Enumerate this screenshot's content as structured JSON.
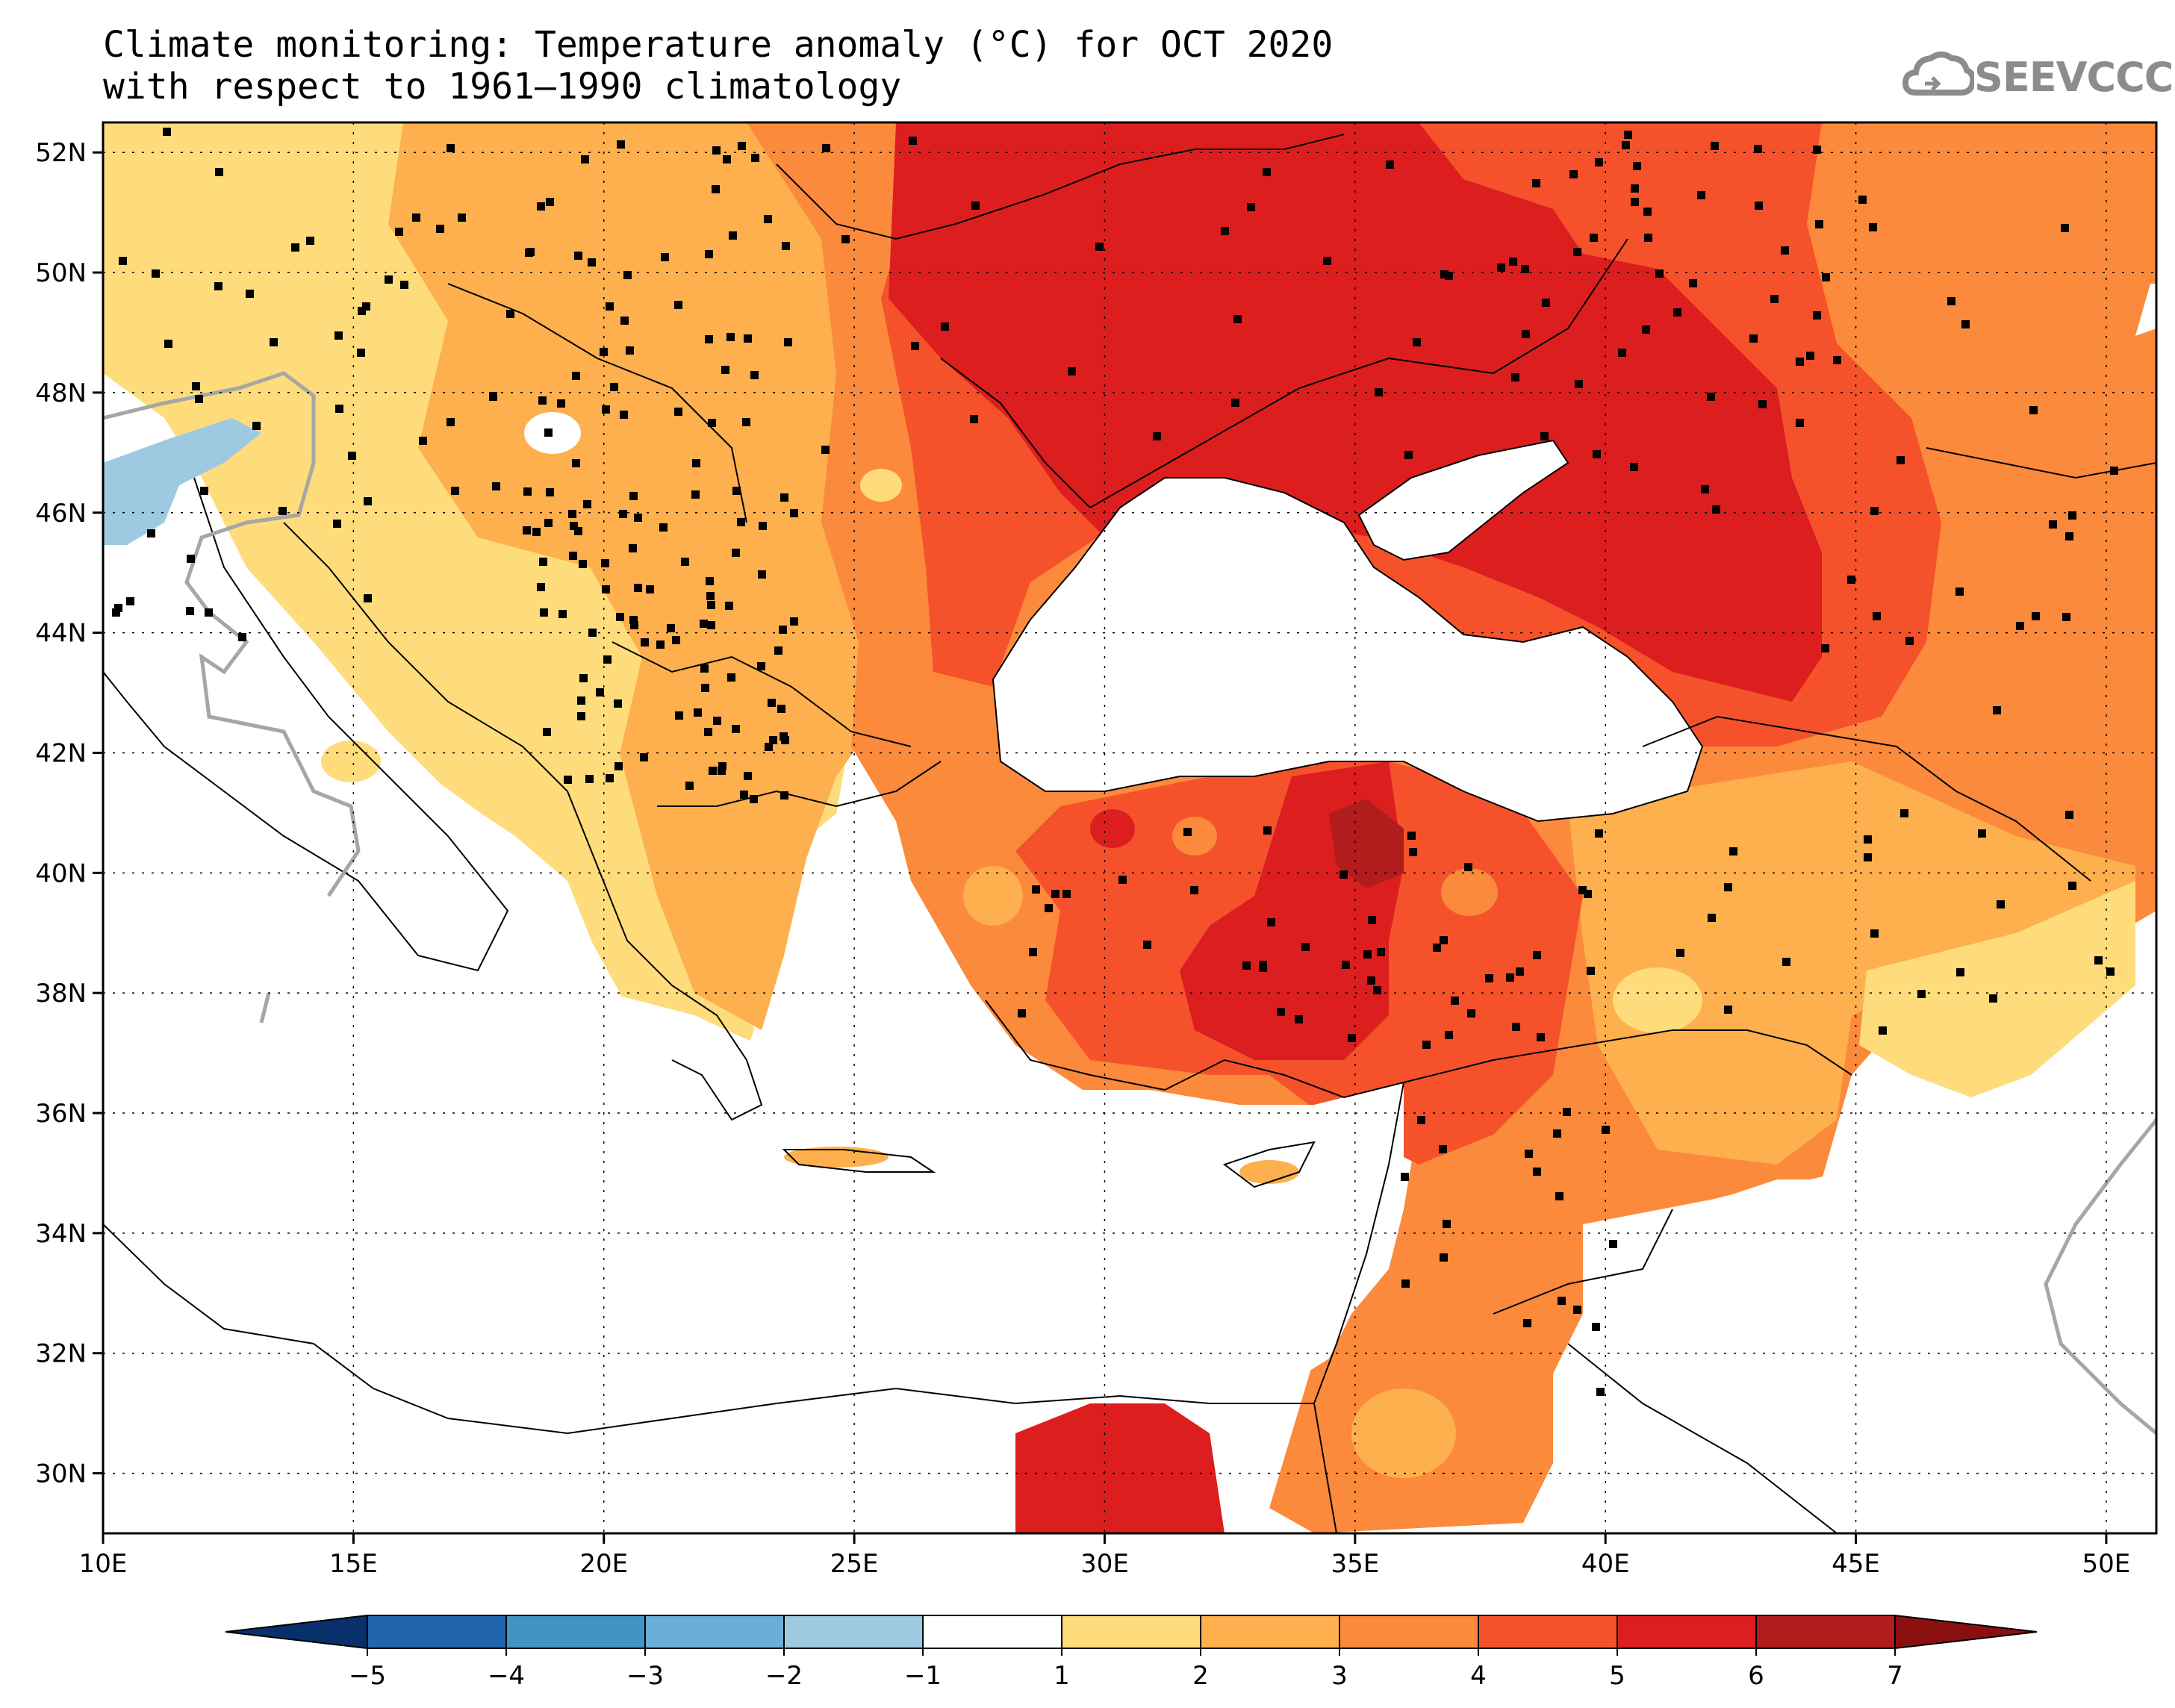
{
  "title": {
    "line1": "Climate monitoring: Temperature anomaly (°C) for OCT 2020",
    "line2": "with respect to 1961–1990 climatology"
  },
  "logo": {
    "text": "SEEVCCC",
    "icon": "cloud-icon"
  },
  "map": {
    "lon_range": [
      10,
      51
    ],
    "lat_range": [
      29,
      52.5
    ],
    "graticule": {
      "lon_step": 5,
      "lat_step": 2,
      "style": "dotted"
    },
    "lat_ticks": [
      "52N",
      "50N",
      "48N",
      "46N",
      "44N",
      "42N",
      "40N",
      "38N",
      "36N",
      "34N",
      "32N",
      "30N"
    ],
    "lon_ticks": [
      "10E",
      "15E",
      "20E",
      "25E",
      "30E",
      "35E",
      "40E",
      "45E",
      "50E"
    ]
  },
  "colorbar": {
    "labels": [
      "-5",
      "-4",
      "-3",
      "-2",
      "-1",
      "1",
      "2",
      "3",
      "4",
      "5",
      "6",
      "7"
    ],
    "classes": [
      {
        "range": "< -5",
        "color": "#08306b"
      },
      {
        "range": "-5 to -4",
        "color": "#2166ac"
      },
      {
        "range": "-4 to -3",
        "color": "#4393c3"
      },
      {
        "range": "-3 to -2",
        "color": "#6baed6"
      },
      {
        "range": "-2 to -1",
        "color": "#9ecae1"
      },
      {
        "range": "-1 to 1",
        "color": "#ffffff"
      },
      {
        "range": "1 to 2",
        "color": "#fedc7b"
      },
      {
        "range": "2 to 3",
        "color": "#fdb04d"
      },
      {
        "range": "3 to 4",
        "color": "#fb8a3c"
      },
      {
        "range": "4 to 5",
        "color": "#f5522c"
      },
      {
        "range": "5 to 6",
        "color": "#dc1e1e"
      },
      {
        "range": "6 to 7",
        "color": "#b11c1c"
      },
      {
        "range": "> 7",
        "color": "#8a1010"
      }
    ]
  }
}
